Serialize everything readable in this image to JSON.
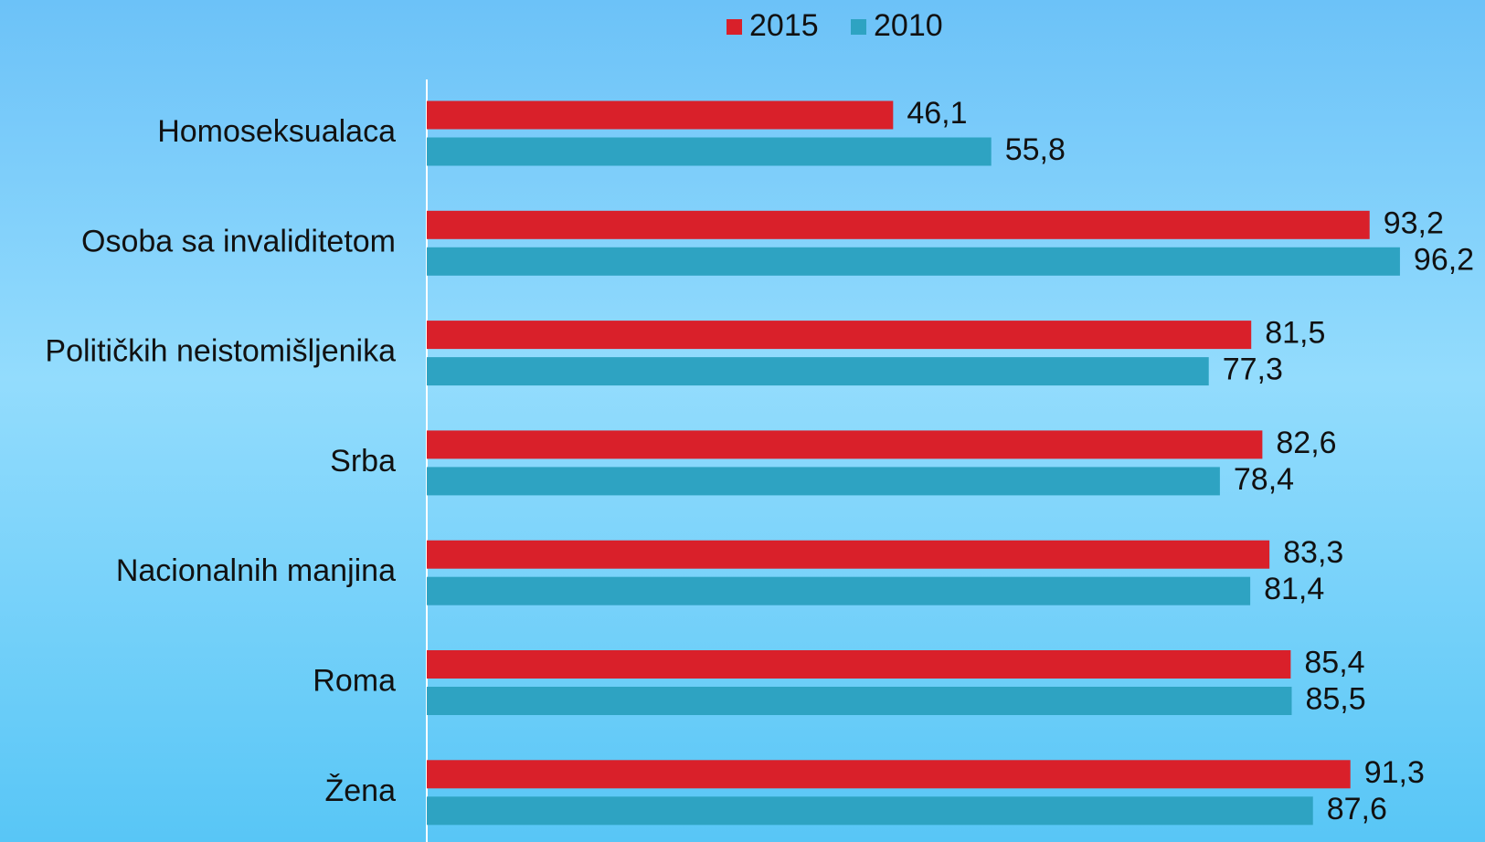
{
  "chart_data": {
    "type": "bar",
    "orientation": "horizontal",
    "categories": [
      "Homoseksualaca",
      "Osoba sa invaliditetom",
      "Političkih neistomišljenika",
      "Srba",
      "Nacionalnih manjina",
      "Roma",
      "Žena"
    ],
    "series": [
      {
        "name": "2015",
        "color": "#d9202a",
        "values": [
          46.1,
          93.2,
          81.5,
          82.6,
          83.3,
          85.4,
          91.3
        ],
        "value_labels": [
          "46,1",
          "93,2",
          "81,5",
          "82,6",
          "83,3",
          "85,4",
          "91,3"
        ]
      },
      {
        "name": "2010",
        "color": "#2ea3c2",
        "values": [
          55.8,
          96.2,
          77.3,
          78.4,
          81.4,
          85.5,
          87.6
        ],
        "value_labels": [
          "55,8",
          "96,2",
          "77,3",
          "78,4",
          "81,4",
          "85,5",
          "87,6"
        ]
      }
    ],
    "legend": "top"
  }
}
